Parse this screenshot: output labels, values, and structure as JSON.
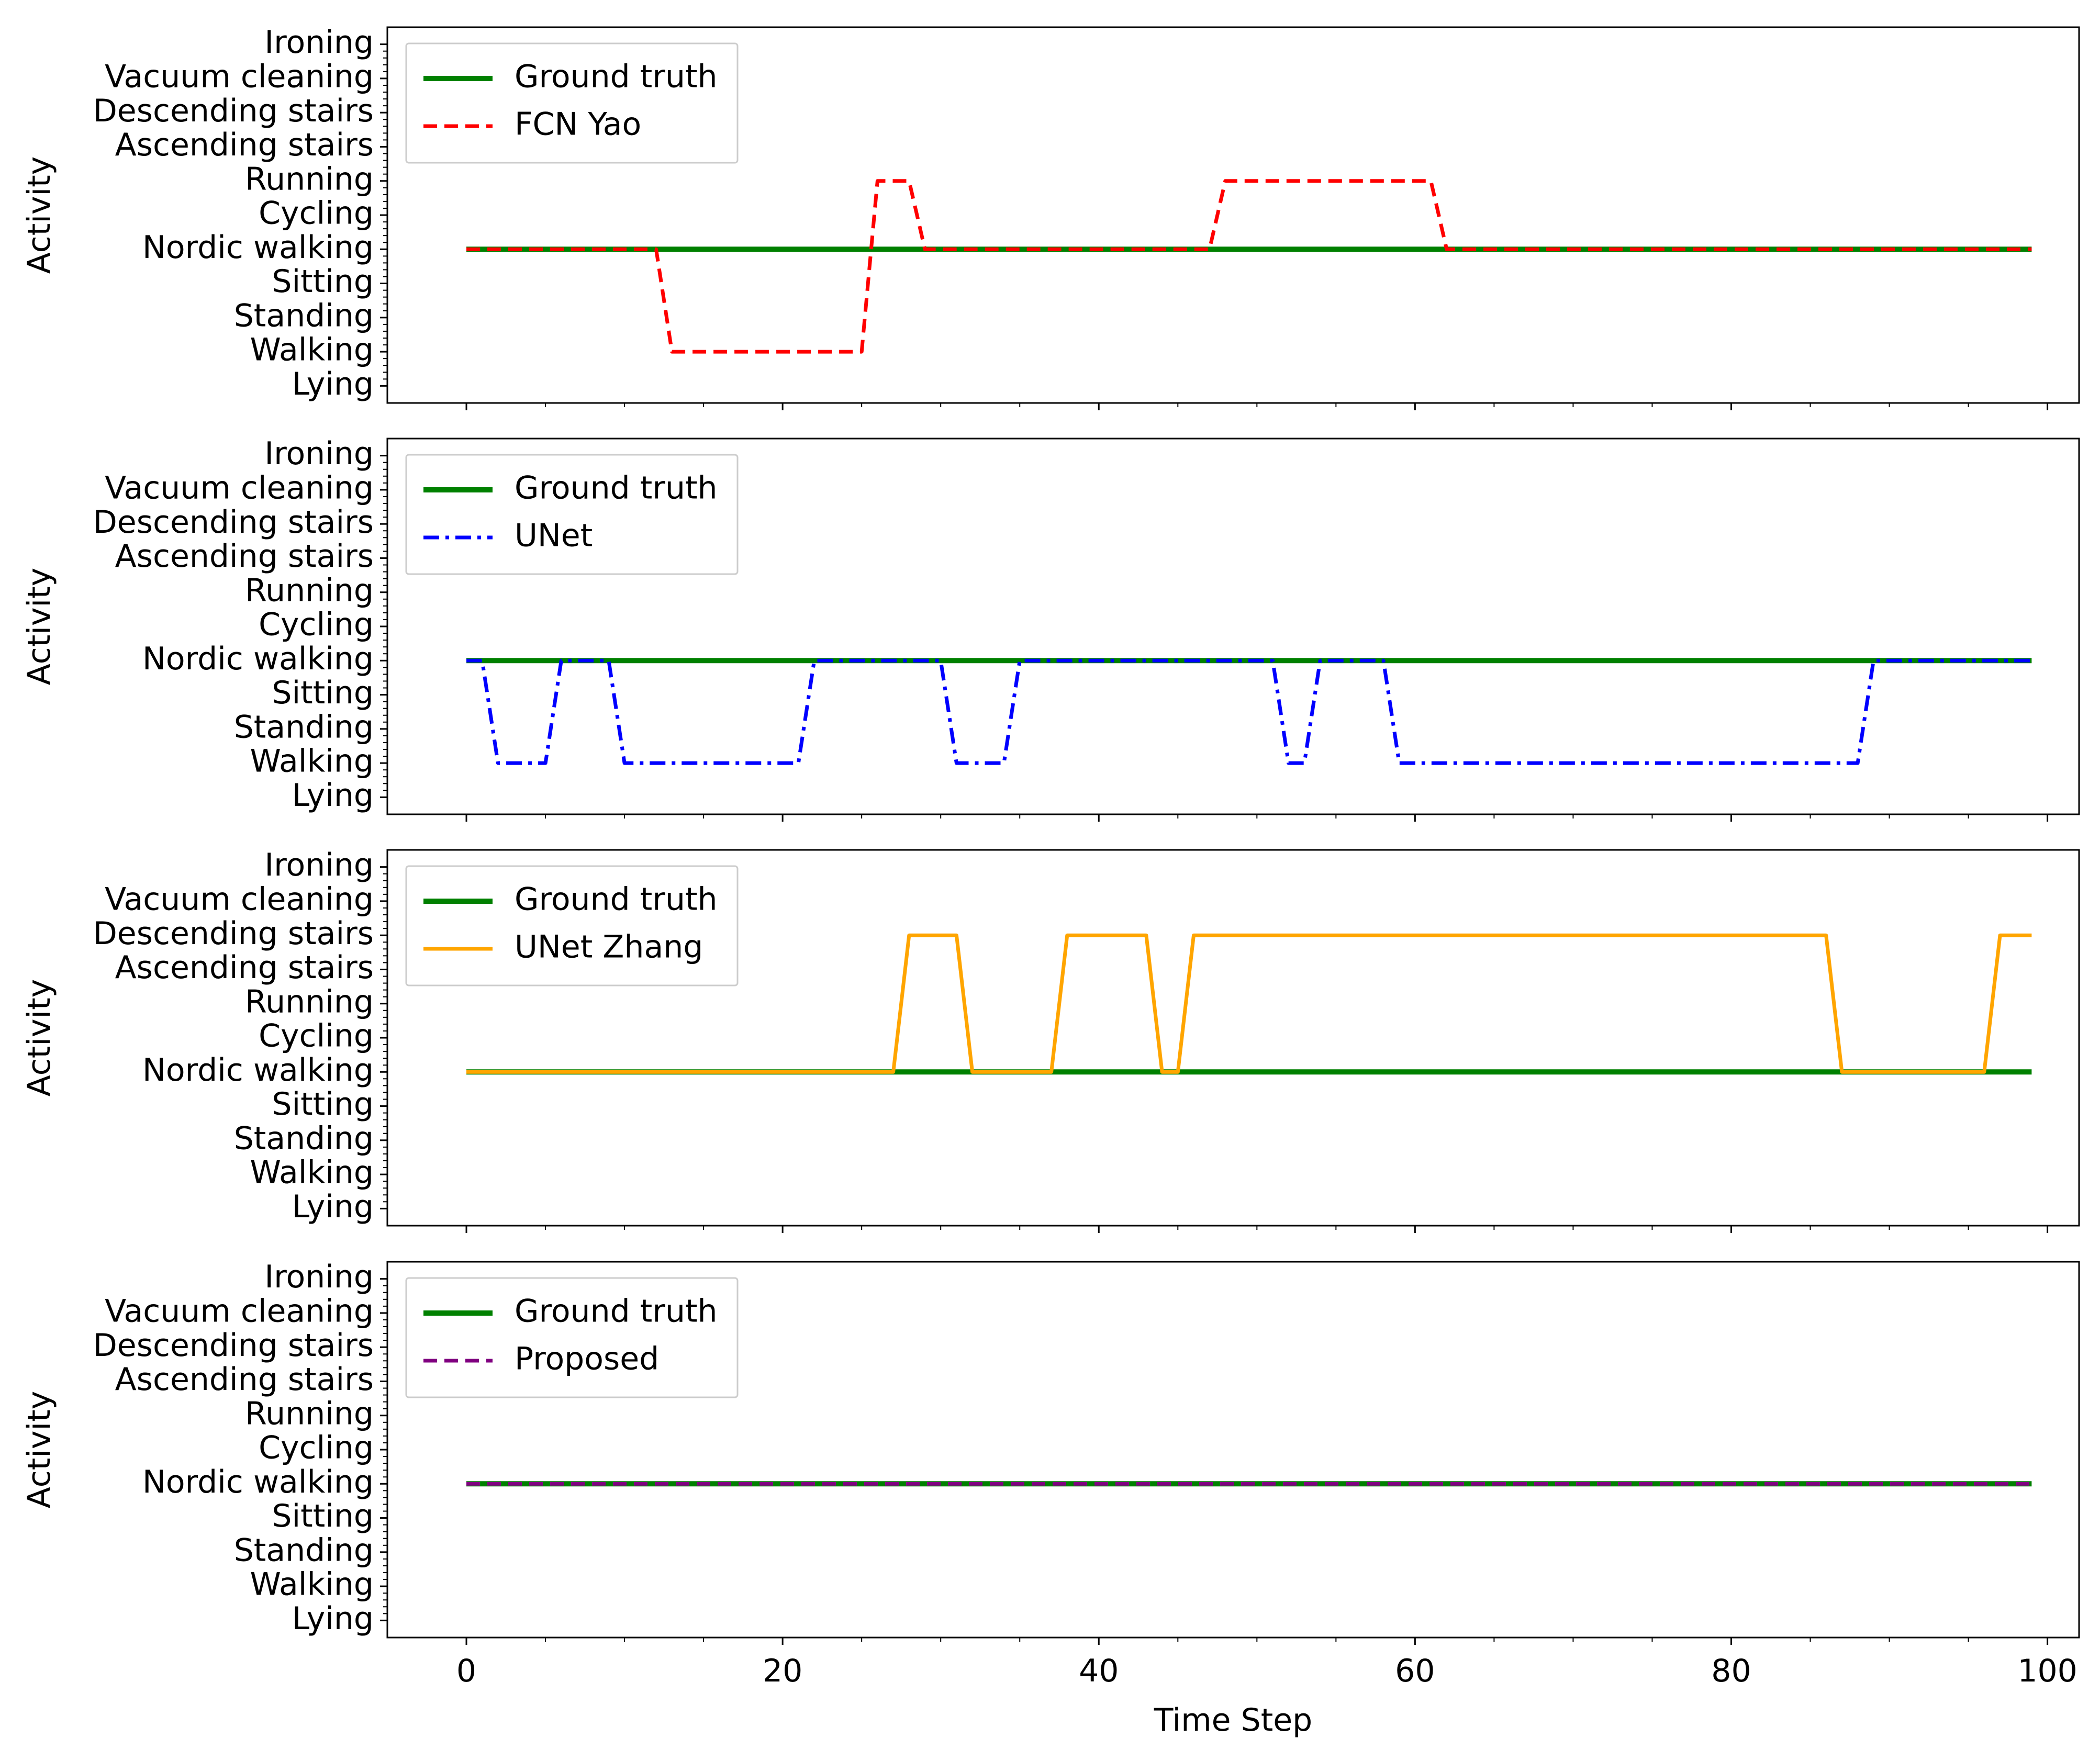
{
  "chart_data": {
    "type": "line",
    "xlabel": "Time Step",
    "ylabel": "Activity",
    "xlim": [
      -5,
      102
    ],
    "x_ticks": [
      0,
      20,
      40,
      60,
      80,
      100
    ],
    "x_minor_step": 5,
    "y_categories": [
      "Lying",
      "Walking",
      "Standing",
      "Sitting",
      "Nordic walking",
      "Cycling",
      "Running",
      "Ascending stairs",
      "Descending stairs",
      "Vacuum cleaning",
      "Ironing"
    ],
    "ylim": [
      -0.5,
      10.5
    ],
    "legend_location": "upper-left",
    "colors": {
      "ground_truth": "#008000",
      "fcn_yao": "#ff0000",
      "unet": "#0000ff",
      "unet_zhang": "#ffa500",
      "proposed": "#800080"
    },
    "panels": [
      {
        "ground_truth_label": "Ground truth",
        "ground_truth": [
          [
            0,
            4
          ],
          [
            99,
            4
          ]
        ],
        "prediction": {
          "name": "FCN Yao",
          "color_key": "fcn_yao",
          "style": "dashed",
          "points": [
            [
              0,
              4
            ],
            [
              12,
              4
            ],
            [
              13,
              1
            ],
            [
              25,
              1
            ],
            [
              26,
              6
            ],
            [
              28,
              6
            ],
            [
              29,
              4
            ],
            [
              47,
              4
            ],
            [
              48,
              6
            ],
            [
              61,
              6
            ],
            [
              62,
              4
            ],
            [
              99,
              4
            ]
          ]
        }
      },
      {
        "ground_truth_label": "Ground truth",
        "ground_truth": [
          [
            0,
            4
          ],
          [
            99,
            4
          ]
        ],
        "prediction": {
          "name": "UNet",
          "color_key": "unet",
          "style": "dashdot",
          "points": [
            [
              0,
              4
            ],
            [
              1,
              4
            ],
            [
              2,
              1
            ],
            [
              5,
              1
            ],
            [
              6,
              4
            ],
            [
              9,
              4
            ],
            [
              10,
              1
            ],
            [
              21,
              1
            ],
            [
              22,
              4
            ],
            [
              30,
              4
            ],
            [
              31,
              1
            ],
            [
              34,
              1
            ],
            [
              35,
              4
            ],
            [
              51,
              4
            ],
            [
              52,
              1
            ],
            [
              53,
              1
            ],
            [
              54,
              4
            ],
            [
              58,
              4
            ],
            [
              59,
              1
            ],
            [
              88,
              1
            ],
            [
              89,
              4
            ],
            [
              99,
              4
            ]
          ]
        }
      },
      {
        "ground_truth_label": "Ground truth",
        "ground_truth": [
          [
            0,
            4
          ],
          [
            99,
            4
          ]
        ],
        "prediction": {
          "name": "UNet Zhang",
          "color_key": "unet_zhang",
          "style": "solid",
          "points": [
            [
              0,
              4
            ],
            [
              27,
              4
            ],
            [
              28,
              8
            ],
            [
              31,
              8
            ],
            [
              32,
              4
            ],
            [
              37,
              4
            ],
            [
              38,
              8
            ],
            [
              43,
              8
            ],
            [
              44,
              4
            ],
            [
              45,
              4
            ],
            [
              46,
              8
            ],
            [
              86,
              8
            ],
            [
              87,
              4
            ],
            [
              96,
              4
            ],
            [
              97,
              8
            ],
            [
              99,
              8
            ]
          ]
        }
      },
      {
        "ground_truth_label": "Ground truth",
        "ground_truth": [
          [
            0,
            4
          ],
          [
            99,
            4
          ]
        ],
        "prediction": {
          "name": "Proposed",
          "color_key": "proposed",
          "style": "dashed",
          "points": [
            [
              0,
              4
            ],
            [
              99,
              4
            ]
          ]
        }
      }
    ]
  }
}
